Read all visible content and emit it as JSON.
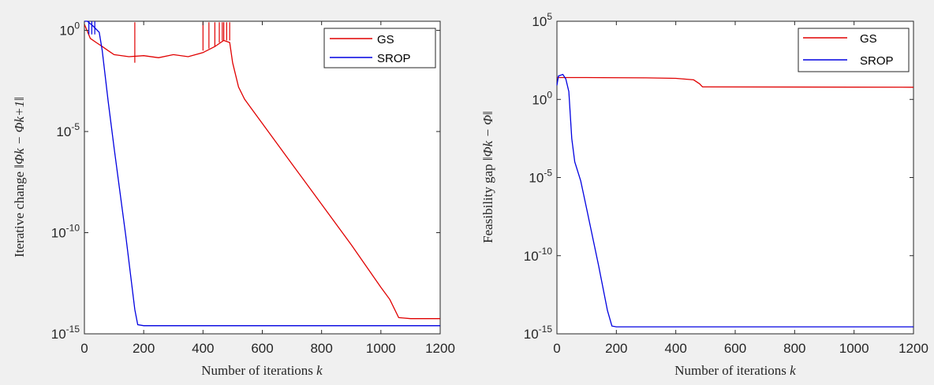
{
  "chart_data": [
    {
      "type": "line",
      "xlabel": "Number of iterations",
      "xlabel_var": "k",
      "ylabel": "Iterative change",
      "ylabel_expr": "‖Φk − Φk+1‖",
      "yscale": "log",
      "xlim": [
        0,
        1200
      ],
      "ylim_exp": [
        -15,
        0.45
      ],
      "x_ticks": [
        "0",
        "200",
        "400",
        "600",
        "800",
        "1000",
        "1200"
      ],
      "y_ticks": [
        {
          "base": "10",
          "exp": "-15",
          "value": -15
        },
        {
          "base": "10",
          "exp": "-10",
          "value": -10
        },
        {
          "base": "10",
          "exp": "-5",
          "value": -5
        },
        {
          "label": "10",
          "suffix": "0",
          "value": 0
        }
      ],
      "legend_position": "top-right",
      "series": [
        {
          "name": "GS",
          "color": "#e00000",
          "points": [
            [
              0,
              0.3
            ],
            [
              20,
              -0.4
            ],
            [
              40,
              -0.6
            ],
            [
              60,
              -0.8
            ],
            [
              80,
              -1.0
            ],
            [
              100,
              -1.2
            ],
            [
              150,
              -1.3
            ],
            [
              200,
              -1.25
            ],
            [
              250,
              -1.35
            ],
            [
              300,
              -1.2
            ],
            [
              350,
              -1.3
            ],
            [
              400,
              -1.1
            ],
            [
              440,
              -0.8
            ],
            [
              470,
              -0.5
            ],
            [
              490,
              -0.6
            ],
            [
              500,
              -1.6
            ],
            [
              520,
              -2.8
            ],
            [
              540,
              -3.4
            ],
            [
              560,
              -3.8
            ],
            [
              600,
              -4.6
            ],
            [
              700,
              -6.6
            ],
            [
              800,
              -8.6
            ],
            [
              900,
              -10.6
            ],
            [
              1000,
              -12.7
            ],
            [
              1030,
              -13.3
            ],
            [
              1060,
              -14.2
            ],
            [
              1100,
              -14.25
            ],
            [
              1200,
              -14.25
            ]
          ],
          "spikes": [
            [
              170,
              -1.6,
              0.4
            ],
            [
              400,
              -1.0,
              0.4
            ],
            [
              420,
              -0.9,
              0.4
            ],
            [
              440,
              -0.8,
              0.4
            ],
            [
              455,
              -0.6,
              0.4
            ],
            [
              465,
              -0.5,
              0.4
            ],
            [
              470,
              -0.5,
              0.4
            ],
            [
              480,
              -0.5,
              0.4
            ],
            [
              490,
              -0.5,
              0.4
            ]
          ]
        },
        {
          "name": "SROP",
          "color": "#0000e0",
          "points": [
            [
              0,
              0.45
            ],
            [
              10,
              0.45
            ],
            [
              30,
              0.2
            ],
            [
              50,
              -0.1
            ],
            [
              60,
              -1.0
            ],
            [
              80,
              -3.5
            ],
            [
              100,
              -5.8
            ],
            [
              140,
              -10.2
            ],
            [
              170,
              -13.8
            ],
            [
              180,
              -14.55
            ],
            [
              200,
              -14.6
            ],
            [
              400,
              -14.6
            ],
            [
              600,
              -14.6
            ],
            [
              800,
              -14.6
            ],
            [
              1000,
              -14.6
            ],
            [
              1200,
              -14.6
            ]
          ],
          "spikes": [
            [
              15,
              0.45,
              -0.2
            ],
            [
              25,
              0.45,
              -0.2
            ],
            [
              35,
              0.45,
              -0.2
            ]
          ]
        }
      ]
    },
    {
      "type": "line",
      "xlabel": "Number of iterations",
      "xlabel_var": "k",
      "ylabel": "Feasibility gap",
      "ylabel_expr": "‖Φk − Φ‖",
      "yscale": "log",
      "xlim": [
        0,
        1200
      ],
      "ylim_exp": [
        -15,
        5
      ],
      "x_ticks": [
        "0",
        "200",
        "400",
        "600",
        "800",
        "1000",
        "1200"
      ],
      "y_ticks": [
        {
          "base": "10",
          "exp": "-15",
          "value": -15
        },
        {
          "base": "10",
          "exp": "-10",
          "value": -10
        },
        {
          "base": "10",
          "exp": "-5",
          "value": -5
        },
        {
          "label": "10",
          "suffix": "0",
          "value": 0
        },
        {
          "base": "10",
          "exp": "5",
          "value": 5
        }
      ],
      "legend_position": "top-right",
      "series": [
        {
          "name": "GS",
          "color": "#e00000",
          "points": [
            [
              0,
              1.4
            ],
            [
              100,
              1.4
            ],
            [
              300,
              1.38
            ],
            [
              400,
              1.35
            ],
            [
              460,
              1.25
            ],
            [
              480,
              1.0
            ],
            [
              490,
              0.8
            ],
            [
              500,
              0.8
            ],
            [
              1200,
              0.78
            ]
          ],
          "spikes": []
        },
        {
          "name": "SROP",
          "color": "#0000e0",
          "points": [
            [
              0,
              0.9
            ],
            [
              5,
              1.5
            ],
            [
              20,
              1.6
            ],
            [
              30,
              1.3
            ],
            [
              40,
              0.5
            ],
            [
              50,
              -2.5
            ],
            [
              60,
              -4.0
            ],
            [
              80,
              -5.2
            ],
            [
              100,
              -7.0
            ],
            [
              140,
              -10.6
            ],
            [
              170,
              -13.5
            ],
            [
              185,
              -14.5
            ],
            [
              200,
              -14.55
            ],
            [
              400,
              -14.55
            ],
            [
              600,
              -14.55
            ],
            [
              800,
              -14.55
            ],
            [
              1000,
              -14.55
            ],
            [
              1200,
              -14.55
            ]
          ],
          "spikes": []
        }
      ]
    }
  ]
}
